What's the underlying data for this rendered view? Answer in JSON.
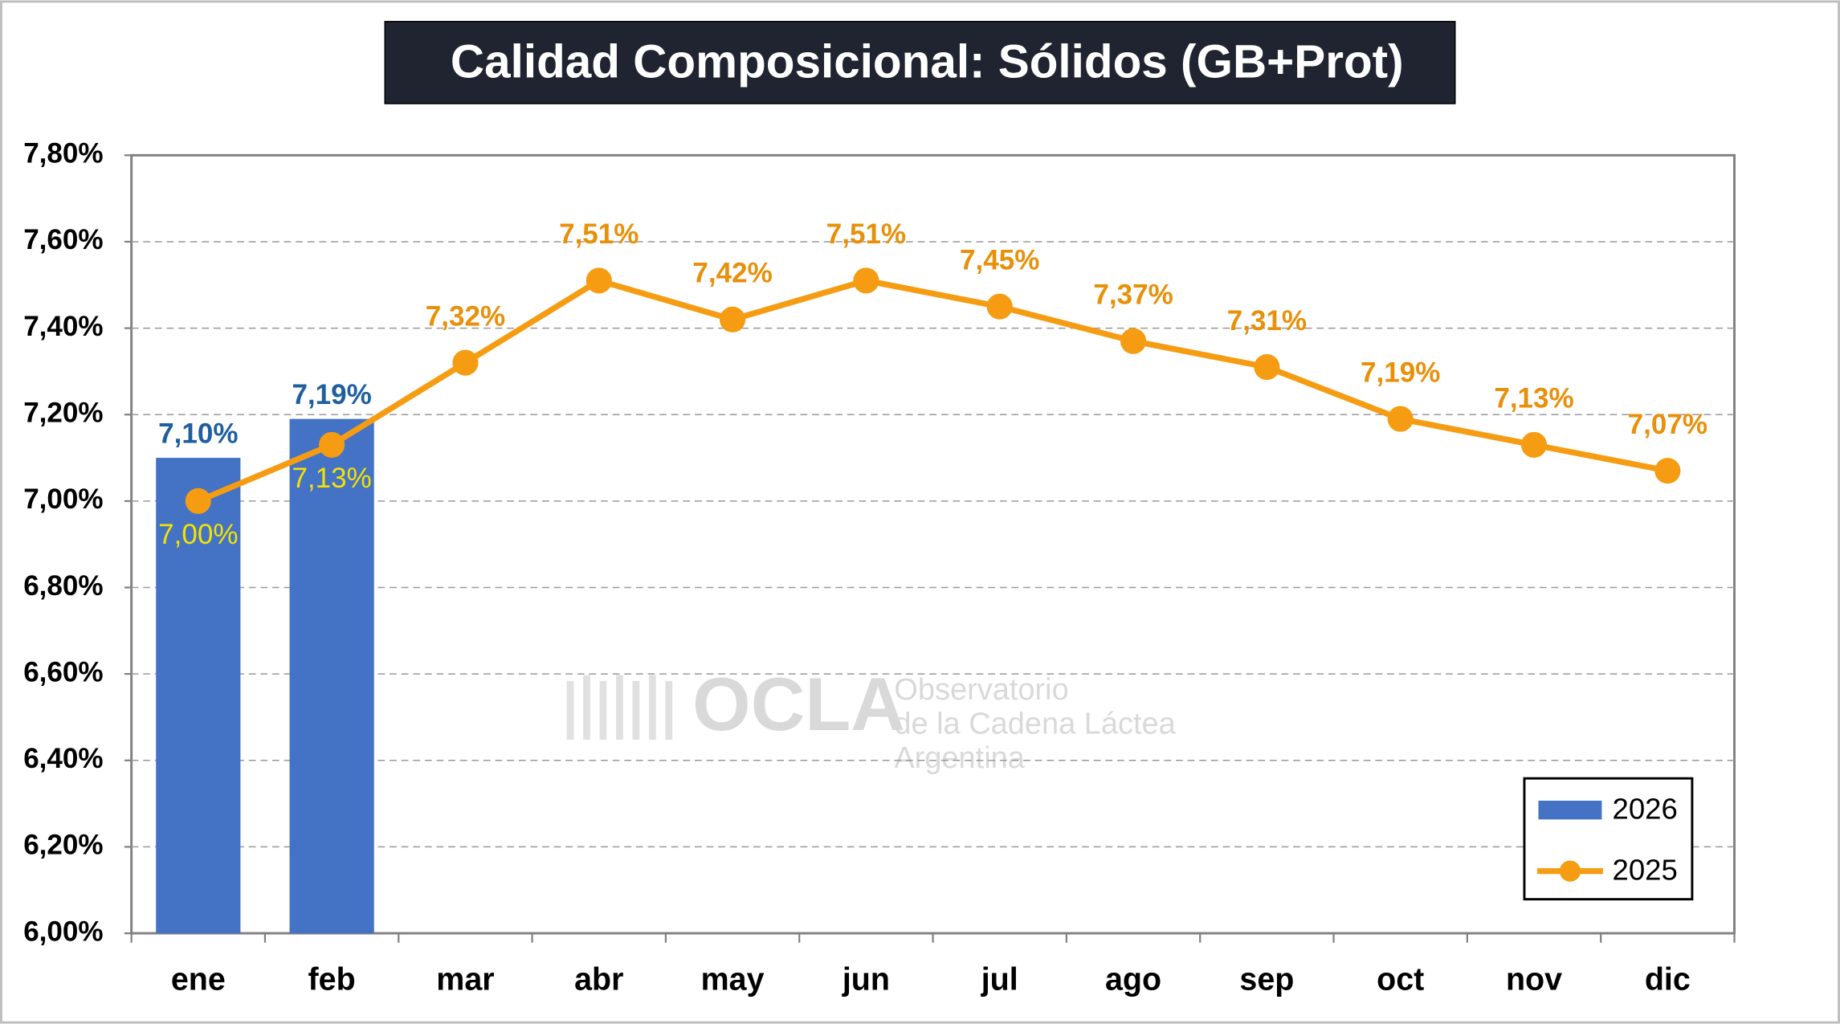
{
  "chart_data": {
    "type": "bar_line",
    "title": "Calidad Composicional: Sólidos (GB+Prot)",
    "categories": [
      "ene",
      "feb",
      "mar",
      "abr",
      "may",
      "jun",
      "jul",
      "ago",
      "sep",
      "oct",
      "nov",
      "dic"
    ],
    "series": [
      {
        "name": "2026",
        "type": "bar",
        "color": "#4472c4",
        "label_color": "#1f5fa0",
        "values": [
          7.1,
          7.19,
          null,
          null,
          null,
          null,
          null,
          null,
          null,
          null,
          null,
          null
        ],
        "value_labels": [
          "7,10%",
          "7,19%",
          null,
          null,
          null,
          null,
          null,
          null,
          null,
          null,
          null,
          null
        ]
      },
      {
        "name": "2025",
        "type": "line",
        "color": "#f59c12",
        "label_color": "#e8900a",
        "values": [
          7.0,
          7.13,
          7.32,
          7.51,
          7.42,
          7.51,
          7.45,
          7.37,
          7.31,
          7.19,
          7.13,
          7.07
        ],
        "value_labels": [
          "7,00%",
          "7,13%",
          "7,32%",
          "7,51%",
          "7,42%",
          "7,51%",
          "7,45%",
          "7,37%",
          "7,31%",
          "7,19%",
          "7,13%",
          "7,07%"
        ]
      }
    ],
    "ylim": [
      6.0,
      7.8
    ],
    "yticks": [
      {
        "value": 6.0,
        "label": "6,00%"
      },
      {
        "value": 6.2,
        "label": "6,20%"
      },
      {
        "value": 6.4,
        "label": "6,40%"
      },
      {
        "value": 6.6,
        "label": "6,60%"
      },
      {
        "value": 6.8,
        "label": "6,80%"
      },
      {
        "value": 7.0,
        "label": "7,00%"
      },
      {
        "value": 7.2,
        "label": "7,20%"
      },
      {
        "value": 7.4,
        "label": "7,40%"
      },
      {
        "value": 7.6,
        "label": "7,60%"
      },
      {
        "value": 7.8,
        "label": "7,80%"
      }
    ],
    "grid": true,
    "legend": "lower right",
    "watermark": {
      "logo": "OCLA",
      "lines": [
        "Observatorio",
        "de la Cadena Láctea",
        "Argentina"
      ]
    }
  }
}
